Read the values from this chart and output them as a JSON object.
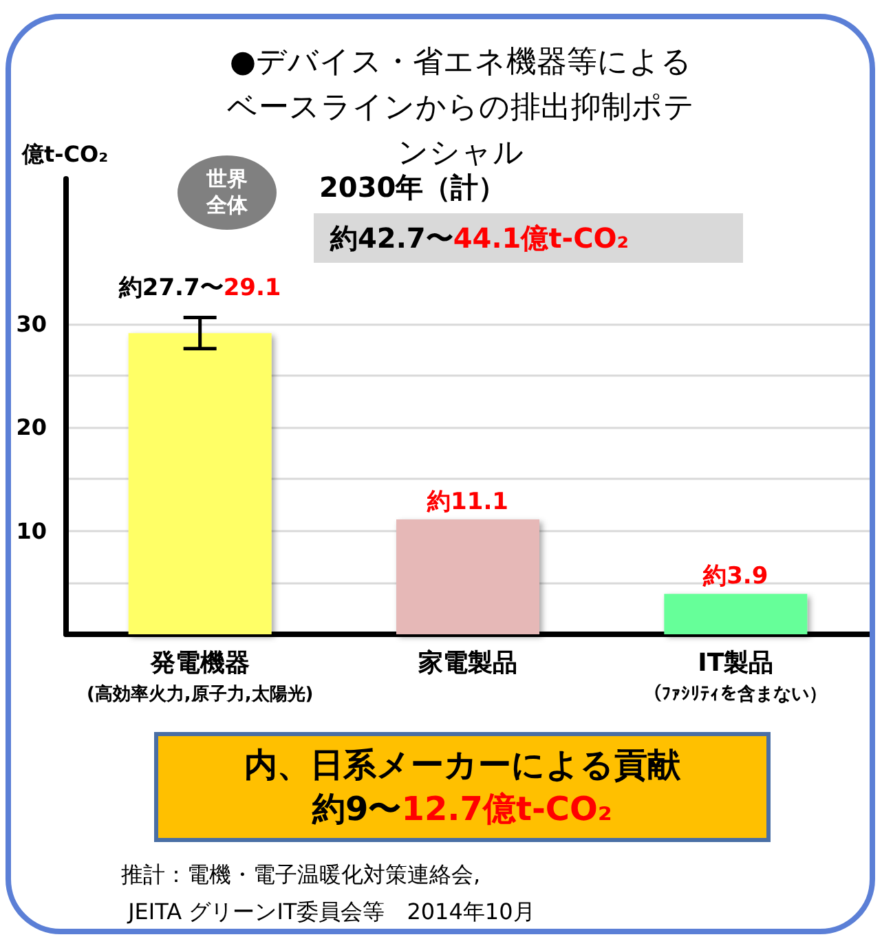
{
  "chart_data": {
    "type": "bar",
    "title": "●デバイス・省エネ機器等によるベースラインからの排出抑制ポテンシャル",
    "ylabel": "億t-CO₂",
    "categories": [
      "発電機器(高効率火力,原子力,太陽光)",
      "家電製品",
      "IT製品（ﾌｧｼﾘﾃｨを含まない）"
    ],
    "values": [
      29.1,
      11.1,
      3.9
    ],
    "colors": [
      "#ffff66",
      "#e6b8b7",
      "#66ff99"
    ],
    "errors": [
      [
        27.6,
        30.6
      ],
      null,
      null
    ],
    "value_labels": [
      "約27.7〜29.1",
      "約11.1",
      "約3.9"
    ],
    "ylim": [
      0,
      44
    ],
    "yticks": [
      {
        "value": 5,
        "label": null
      },
      10,
      {
        "value": 15,
        "label": null
      },
      20,
      {
        "value": 25,
        "label": null
      },
      30
    ],
    "grid": "y",
    "annotations": [
      "世界全体",
      "2030年（計）",
      "約42.7〜44.1億t-CO₂",
      "内、日系メーカーによる貢献約9〜12.7億t-CO₂",
      "推計：電機・電子温暖化対策連絡会,\n JEITA グリーンIT委員会等　2014年10月"
    ]
  }
}
